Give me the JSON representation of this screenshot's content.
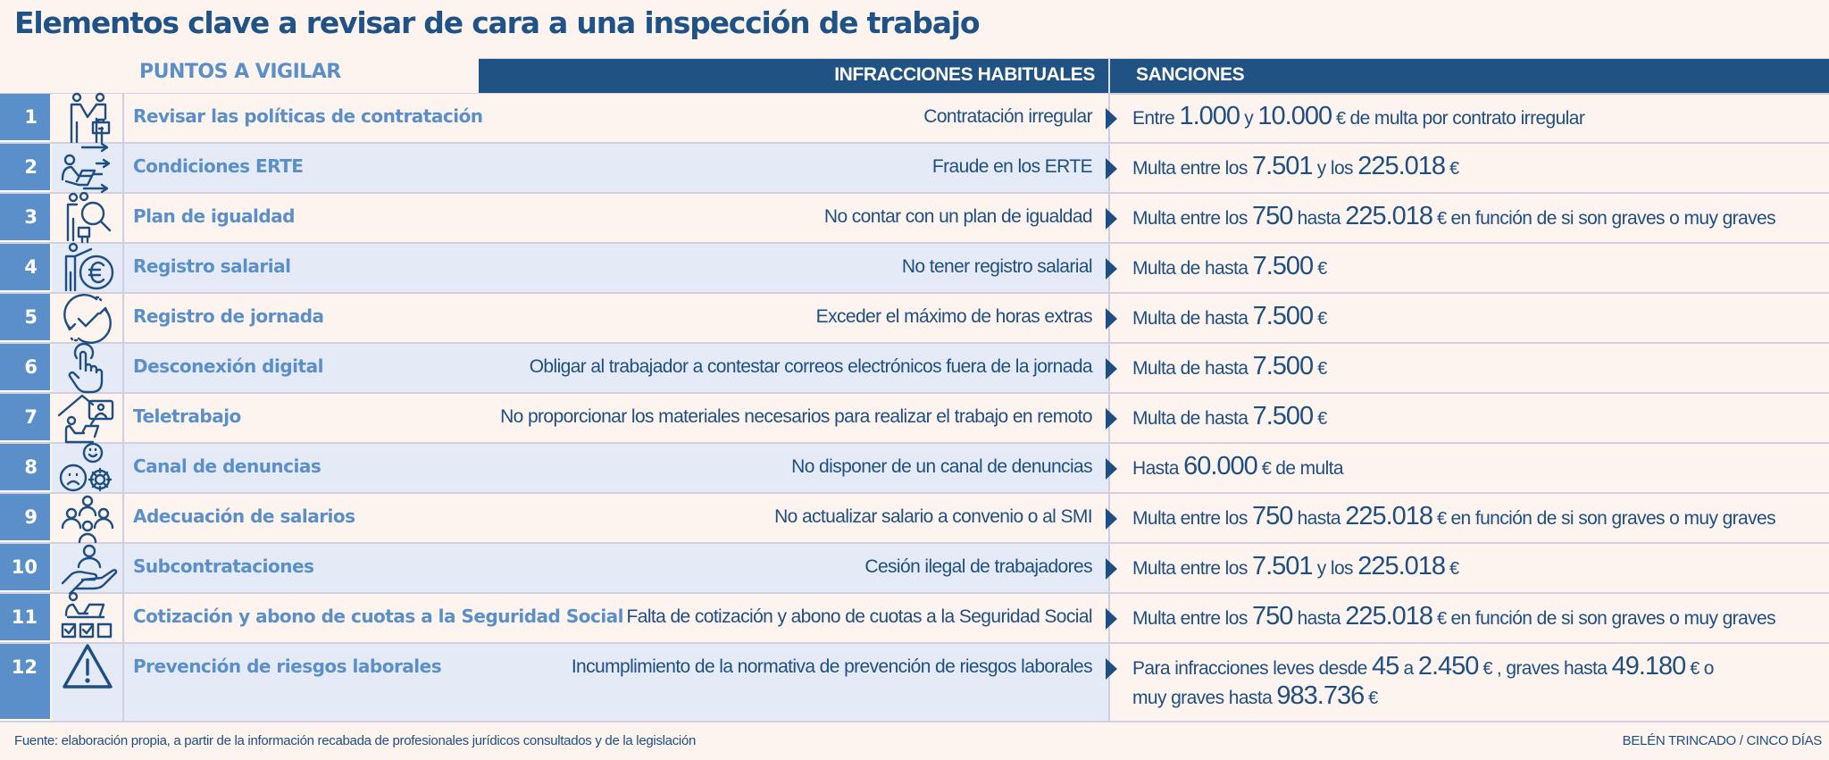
{
  "title": "Elementos clave a revisar de cara a una inspección de trabajo",
  "headers": {
    "puntos": "PUNTOS A VIGILAR",
    "infracciones": "INFRACCIONES HABITUALES",
    "sanciones": "SANCIONES"
  },
  "colors": {
    "background": "#fdf4ef",
    "alt_row": "#e4ebf6",
    "header_bar": "#205284",
    "number_column": "#5b8fc9",
    "accent_text": "#5b8fc9",
    "body_text": "#1f4e82"
  },
  "rows": [
    {
      "num": "1",
      "icon": "handshake-icon",
      "punto": "Revisar las políticas de contratación",
      "infraccion": "Contratación irregular",
      "sancion": [
        {
          "t": "Entre "
        },
        {
          "b": "1.000"
        },
        {
          "t": " y "
        },
        {
          "b": "10.000"
        },
        {
          "e": " € "
        },
        {
          "t": "de multa por contrato irregular"
        }
      ]
    },
    {
      "num": "2",
      "icon": "person-laptop-arrows-icon",
      "punto": "Condiciones ERTE",
      "infraccion": "Fraude en los ERTE",
      "sancion": [
        {
          "t": "Multa entre los "
        },
        {
          "b": "7.501"
        },
        {
          "t": " y los "
        },
        {
          "b": "225.018"
        },
        {
          "e": " €"
        }
      ]
    },
    {
      "num": "3",
      "icon": "people-magnifier-icon",
      "punto": "Plan de igualdad",
      "infraccion": "No contar con un plan de igualdad",
      "sancion": [
        {
          "t": "Multa entre los "
        },
        {
          "b": "750"
        },
        {
          "t": " hasta "
        },
        {
          "b": "225.018"
        },
        {
          "e": " € "
        },
        {
          "t": "en función de si son graves o muy graves"
        }
      ]
    },
    {
      "num": "4",
      "icon": "person-euro-icon",
      "punto": "Registro salarial",
      "infraccion": "No tener registro salarial",
      "sancion": [
        {
          "t": "Multa de hasta "
        },
        {
          "b": "7.500"
        },
        {
          "e": " €"
        }
      ]
    },
    {
      "num": "5",
      "icon": "cycle-check-icon",
      "punto": "Registro de jornada",
      "infraccion": "Exceder el máximo de horas extras",
      "sancion": [
        {
          "t": "Multa de hasta "
        },
        {
          "b": "7.500"
        },
        {
          "e": " €"
        }
      ]
    },
    {
      "num": "6",
      "icon": "hand-pointer-icon",
      "punto": "Desconexión digital",
      "infraccion": "Obligar al trabajador a contestar correos electrónicos fuera de la jornada",
      "sancion": [
        {
          "t": "Multa de hasta "
        },
        {
          "b": "7.500"
        },
        {
          "e": " €"
        }
      ]
    },
    {
      "num": "7",
      "icon": "home-office-icon",
      "punto": "Teletrabajo",
      "infraccion": "No proporcionar los materiales necesarios para realizar el trabajo en remoto",
      "sancion": [
        {
          "t": "Multa de hasta "
        },
        {
          "b": "7.500"
        },
        {
          "e": " €"
        }
      ]
    },
    {
      "num": "8",
      "icon": "faces-gear-icon",
      "punto": "Canal de denuncias",
      "infraccion": "No disponer de un canal de denuncias",
      "sancion": [
        {
          "t": "Hasta "
        },
        {
          "b": "60.000"
        },
        {
          "e": " € "
        },
        {
          "t": "de multa"
        }
      ]
    },
    {
      "num": "9",
      "icon": "group-people-icon",
      "punto": "Adecuación de salarios",
      "infraccion": "No actualizar salario a convenio o al SMI",
      "sancion": [
        {
          "t": "Multa entre los "
        },
        {
          "b": "750"
        },
        {
          "t": " hasta "
        },
        {
          "b": "225.018"
        },
        {
          "e": " € "
        },
        {
          "t": "en función de si son graves o muy graves"
        }
      ]
    },
    {
      "num": "10",
      "icon": "hand-person-icon",
      "punto": "Subcontrataciones",
      "infraccion": "Cesión ilegal de trabajadores",
      "sancion": [
        {
          "t": "Multa entre los "
        },
        {
          "b": "7.501"
        },
        {
          "t": " y los "
        },
        {
          "b": "225.018"
        },
        {
          "e": " €"
        }
      ]
    },
    {
      "num": "11",
      "icon": "person-desk-checkboxes-icon",
      "punto": "Cotización y abono de cuotas a la Seguridad Social",
      "infraccion": "Falta de cotización y abono de cuotas a la Seguridad Social",
      "sancion": [
        {
          "t": "Multa entre los "
        },
        {
          "b": "750"
        },
        {
          "t": " hasta "
        },
        {
          "b": "225.018"
        },
        {
          "e": " € "
        },
        {
          "t": "en función de si son graves o muy graves"
        }
      ]
    },
    {
      "num": "12",
      "icon": "warning-icon",
      "punto": "Prevención de riesgos laborales",
      "infraccion": "Incumplimiento de la normativa de prevención de riesgos laborales",
      "sancion": [
        {
          "t": "Para infracciones leves desde "
        },
        {
          "b": "45"
        },
        {
          "t": " a "
        },
        {
          "b": "2.450"
        },
        {
          "e": " € "
        },
        {
          "t": ", graves hasta "
        },
        {
          "b": "49.180"
        },
        {
          "e": " € "
        },
        {
          "t": " o"
        },
        {
          "br": true
        },
        {
          "t": "muy graves hasta "
        },
        {
          "b": "983.736"
        },
        {
          "e": " €"
        }
      ]
    }
  ],
  "footer": {
    "source": "Fuente: elaboración propia, a partir de la información recabada de profesionales jurídicos consultados y de la legislación",
    "credit": "BELÉN TRINCADO / CINCO DÍAS"
  }
}
